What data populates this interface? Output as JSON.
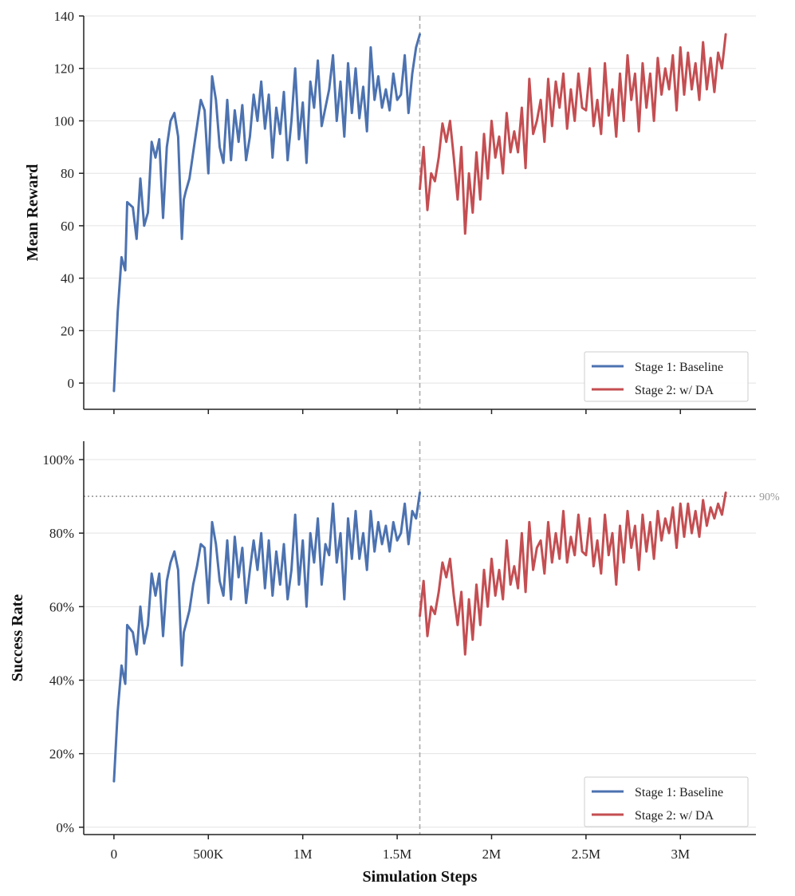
{
  "chart_data": [
    {
      "type": "line",
      "ylabel": "Mean Reward",
      "xlabel": "",
      "xlim": [
        -160000,
        3400000
      ],
      "ylim": [
        -10,
        140
      ],
      "yticks": [
        0,
        20,
        40,
        60,
        80,
        100,
        120,
        140
      ],
      "ytick_labels": [
        "0",
        "20",
        "40",
        "60",
        "80",
        "100",
        "120",
        "140"
      ],
      "xticks": [
        0,
        500000,
        1000000,
        1500000,
        2000000,
        2500000,
        3000000
      ],
      "show_xtick_labels": false,
      "grid": "horizontal",
      "legend_position": "lower-right",
      "stage_boundary_x": 1620000,
      "series": [
        {
          "name": "Stage 1: Baseline",
          "color": "#4c72b0",
          "x": [
            0,
            20000,
            40000,
            60000,
            70000,
            100000,
            120000,
            140000,
            160000,
            180000,
            200000,
            220000,
            240000,
            260000,
            280000,
            300000,
            320000,
            340000,
            360000,
            370000,
            380000,
            400000,
            420000,
            440000,
            460000,
            480000,
            500000,
            520000,
            540000,
            560000,
            580000,
            600000,
            620000,
            640000,
            660000,
            680000,
            700000,
            720000,
            740000,
            760000,
            780000,
            800000,
            820000,
            840000,
            860000,
            880000,
            900000,
            920000,
            940000,
            960000,
            980000,
            1000000,
            1020000,
            1040000,
            1060000,
            1080000,
            1100000,
            1120000,
            1140000,
            1160000,
            1180000,
            1200000,
            1220000,
            1240000,
            1260000,
            1280000,
            1300000,
            1320000,
            1340000,
            1360000,
            1380000,
            1400000,
            1420000,
            1440000,
            1460000,
            1480000,
            1500000,
            1520000,
            1540000,
            1560000,
            1580000,
            1600000,
            1620000
          ],
          "y": [
            -3,
            27,
            48,
            43,
            69,
            67,
            55,
            78,
            60,
            65,
            92,
            86,
            93,
            63,
            90,
            100,
            103,
            94,
            55,
            70,
            73,
            78,
            88,
            98,
            108,
            104,
            80,
            117,
            108,
            90,
            84,
            108,
            85,
            104,
            92,
            106,
            85,
            94,
            110,
            100,
            115,
            97,
            110,
            86,
            105,
            95,
            111,
            85,
            100,
            120,
            93,
            107,
            84,
            115,
            105,
            123,
            98,
            105,
            112,
            125,
            100,
            115,
            94,
            122,
            103,
            120,
            101,
            113,
            96,
            128,
            108,
            117,
            105,
            112,
            104,
            118,
            108,
            110,
            125,
            103,
            118,
            128,
            133
          ]
        },
        {
          "name": "Stage 2: w/ DA",
          "color": "#c44e52",
          "x": [
            1620000,
            1640000,
            1660000,
            1680000,
            1700000,
            1720000,
            1740000,
            1760000,
            1780000,
            1800000,
            1820000,
            1840000,
            1860000,
            1880000,
            1900000,
            1920000,
            1940000,
            1960000,
            1980000,
            2000000,
            2020000,
            2040000,
            2060000,
            2080000,
            2100000,
            2120000,
            2140000,
            2160000,
            2180000,
            2200000,
            2220000,
            2240000,
            2260000,
            2280000,
            2300000,
            2320000,
            2340000,
            2360000,
            2380000,
            2400000,
            2420000,
            2440000,
            2460000,
            2480000,
            2500000,
            2520000,
            2540000,
            2560000,
            2580000,
            2600000,
            2620000,
            2640000,
            2660000,
            2680000,
            2700000,
            2720000,
            2740000,
            2760000,
            2780000,
            2800000,
            2820000,
            2840000,
            2860000,
            2880000,
            2900000,
            2920000,
            2940000,
            2960000,
            2980000,
            3000000,
            3020000,
            3040000,
            3060000,
            3080000,
            3100000,
            3120000,
            3140000,
            3160000,
            3180000,
            3200000,
            3220000,
            3240000
          ],
          "y": [
            74,
            90,
            66,
            80,
            77,
            86,
            99,
            92,
            100,
            86,
            70,
            90,
            57,
            80,
            65,
            88,
            70,
            95,
            78,
            100,
            86,
            94,
            80,
            103,
            88,
            96,
            88,
            105,
            82,
            116,
            95,
            100,
            108,
            92,
            116,
            98,
            115,
            105,
            118,
            97,
            112,
            100,
            118,
            105,
            104,
            120,
            98,
            108,
            95,
            122,
            102,
            112,
            94,
            118,
            100,
            125,
            108,
            118,
            96,
            122,
            105,
            118,
            100,
            124,
            110,
            120,
            112,
            125,
            104,
            128,
            110,
            126,
            112,
            122,
            108,
            130,
            112,
            124,
            111,
            126,
            120,
            133
          ]
        }
      ]
    },
    {
      "type": "line",
      "ylabel": "Success Rate",
      "xlabel": "Simulation Steps",
      "xlim": [
        -160000,
        3400000
      ],
      "ylim": [
        -2,
        105
      ],
      "yticks": [
        0,
        20,
        40,
        60,
        80,
        100
      ],
      "ytick_labels": [
        "0%",
        "20%",
        "40%",
        "60%",
        "80%",
        "100%"
      ],
      "xticks": [
        0,
        500000,
        1000000,
        1500000,
        2000000,
        2500000,
        3000000
      ],
      "xtick_labels": [
        "0",
        "500K",
        "1M",
        "1.5M",
        "2M",
        "2.5M",
        "3M"
      ],
      "show_xtick_labels": true,
      "grid": "horizontal",
      "legend_position": "lower-right",
      "stage_boundary_x": 1620000,
      "reference_line": {
        "y": 90,
        "label": "90%"
      },
      "series": [
        {
          "name": "Stage 1: Baseline",
          "color": "#4c72b0",
          "x": [
            0,
            20000,
            40000,
            60000,
            70000,
            100000,
            120000,
            140000,
            160000,
            180000,
            200000,
            220000,
            240000,
            260000,
            280000,
            300000,
            320000,
            340000,
            360000,
            370000,
            380000,
            400000,
            420000,
            440000,
            460000,
            480000,
            500000,
            520000,
            540000,
            560000,
            580000,
            600000,
            620000,
            640000,
            660000,
            680000,
            700000,
            720000,
            740000,
            760000,
            780000,
            800000,
            820000,
            840000,
            860000,
            880000,
            900000,
            920000,
            940000,
            960000,
            980000,
            1000000,
            1020000,
            1040000,
            1060000,
            1080000,
            1100000,
            1120000,
            1140000,
            1160000,
            1180000,
            1200000,
            1220000,
            1240000,
            1260000,
            1280000,
            1300000,
            1320000,
            1340000,
            1360000,
            1380000,
            1400000,
            1420000,
            1440000,
            1460000,
            1480000,
            1500000,
            1520000,
            1540000,
            1560000,
            1580000,
            1600000,
            1620000
          ],
          "y": [
            12.5,
            31.5,
            44,
            39,
            55,
            53,
            47,
            60,
            50,
            55,
            69,
            63,
            69,
            52,
            67,
            72,
            75,
            70,
            44,
            53,
            55,
            59,
            66,
            71,
            77,
            76,
            61,
            83,
            77,
            67,
            63,
            78,
            62,
            79,
            68,
            76,
            61,
            70,
            78,
            70,
            80,
            65,
            78,
            63,
            75,
            66,
            77,
            62,
            70,
            85,
            66,
            78,
            60,
            80,
            72,
            84,
            66,
            77,
            74,
            88,
            72,
            80,
            62,
            84,
            73,
            86,
            73,
            80,
            70,
            86,
            75,
            83,
            77,
            82,
            75,
            83,
            78,
            80,
            88,
            77,
            86,
            84,
            91
          ]
        },
        {
          "name": "Stage 2: w/ DA",
          "color": "#c44e52",
          "x": [
            1620000,
            1640000,
            1660000,
            1680000,
            1700000,
            1720000,
            1740000,
            1760000,
            1780000,
            1800000,
            1820000,
            1840000,
            1860000,
            1880000,
            1900000,
            1920000,
            1940000,
            1960000,
            1980000,
            2000000,
            2020000,
            2040000,
            2060000,
            2080000,
            2100000,
            2120000,
            2140000,
            2160000,
            2180000,
            2200000,
            2220000,
            2240000,
            2260000,
            2280000,
            2300000,
            2320000,
            2340000,
            2360000,
            2380000,
            2400000,
            2420000,
            2440000,
            2460000,
            2480000,
            2500000,
            2520000,
            2540000,
            2560000,
            2580000,
            2600000,
            2620000,
            2640000,
            2660000,
            2680000,
            2700000,
            2720000,
            2740000,
            2760000,
            2780000,
            2800000,
            2820000,
            2840000,
            2860000,
            2880000,
            2900000,
            2920000,
            2940000,
            2960000,
            2980000,
            3000000,
            3020000,
            3040000,
            3060000,
            3080000,
            3100000,
            3120000,
            3140000,
            3160000,
            3180000,
            3200000,
            3220000,
            3240000
          ],
          "y": [
            57.5,
            67,
            52,
            60,
            58,
            64,
            72,
            68,
            73,
            63,
            55,
            64,
            47,
            62,
            51,
            66,
            55,
            70,
            60,
            73,
            63,
            70,
            62,
            78,
            66,
            71,
            65,
            80,
            64,
            83,
            70,
            76,
            78,
            69,
            83,
            72,
            80,
            73,
            86,
            72,
            79,
            74,
            85,
            75,
            74,
            84,
            71,
            78,
            69,
            85,
            74,
            80,
            66,
            82,
            72,
            86,
            76,
            82,
            70,
            85,
            75,
            83,
            73,
            86,
            78,
            84,
            80,
            87,
            76,
            88,
            79,
            88,
            80,
            86,
            79,
            89,
            82,
            87,
            84,
            88,
            85,
            91
          ]
        }
      ]
    }
  ]
}
